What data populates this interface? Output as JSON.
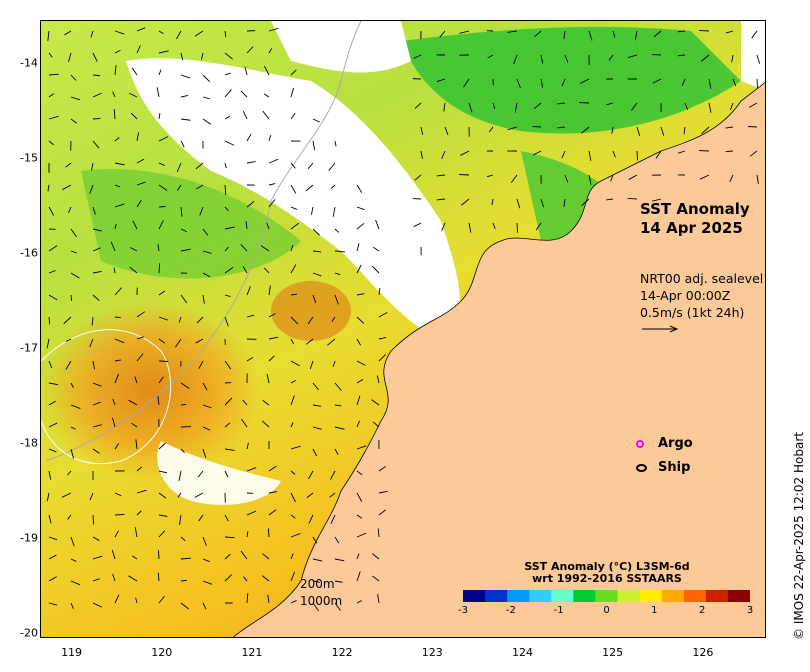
{
  "map": {
    "title_line1": "SST Anomaly",
    "title_line2": "14 Apr 2025",
    "lon_ticks": [
      "119",
      "120",
      "121",
      "122",
      "123",
      "124",
      "125",
      "126"
    ],
    "lat_ticks": [
      "-14",
      "-15",
      "-16",
      "-17",
      "-18",
      "-19",
      "-20"
    ],
    "lon_range": [
      118.65,
      126.7
    ],
    "lat_range": [
      -20.05,
      -13.55
    ],
    "vector_legend": {
      "line1": "NRT00 adj. sealevel",
      "line2": "14-Apr 00:00Z",
      "line3": "0.5m/s (1kt 24h)"
    },
    "markers": {
      "argo_label": "Argo",
      "argo_color": "#ff00ff",
      "ship_label": "Ship",
      "ship_color": "#000000"
    },
    "colorbar": {
      "title_line1": "SST Anomaly (°C) L3SM-6d",
      "title_line2": "wrt 1992-2016 SSTAARS",
      "ticks": [
        "-3",
        "-2",
        "-1",
        "0",
        "1",
        "2",
        "3"
      ],
      "colors": [
        "#00008b",
        "#0033cc",
        "#0099ff",
        "#33ccff",
        "#66ffcc",
        "#00cc33",
        "#66dd22",
        "#ccee33",
        "#ffee00",
        "#ffaa00",
        "#ff6600",
        "#cc2200",
        "#8b0000"
      ]
    },
    "depth_labels": [
      "200m",
      "1000m"
    ],
    "land_color": "#fcc999",
    "credit": "© IMOS 22-Apr-2025 12:02 Hobart"
  }
}
